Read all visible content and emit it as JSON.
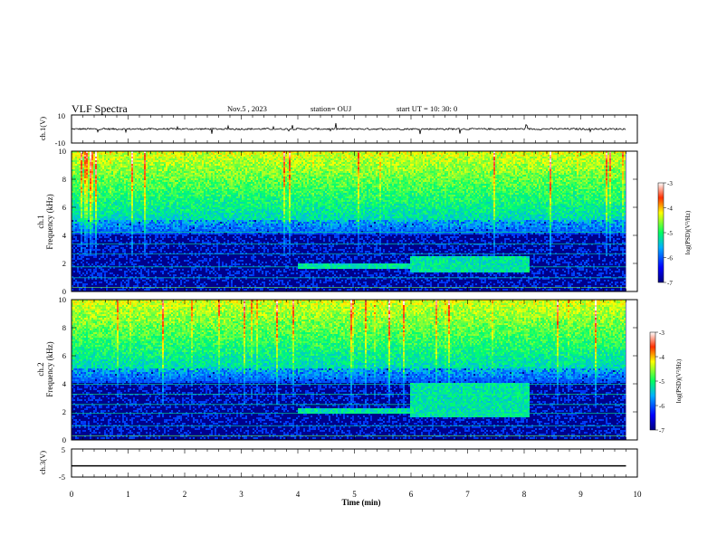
{
  "header": {
    "title": "VLF Spectra",
    "date": "Nov.5 , 2023",
    "station": "station= OUJ",
    "start_ut": "start UT = 10: 30: 0"
  },
  "chart_data": [
    {
      "type": "line",
      "ylabel": "ch.1(V)",
      "ylim": [
        -10,
        10
      ],
      "yticks": [
        "10",
        "-10"
      ],
      "xlim": [
        0,
        10
      ],
      "baseline": 0,
      "trace_color": "#000000"
    },
    {
      "type": "heatmap",
      "ylabel": "ch.1\nFrequency (kHz)",
      "ylim": [
        0,
        10
      ],
      "yticks": [
        "0",
        "2",
        "4",
        "6",
        "8",
        "10"
      ],
      "xlim": [
        0,
        10
      ],
      "colorbar": {
        "label": "log(PSD)(V²/Hz)",
        "range": [
          -7,
          -3
        ],
        "ticks": [
          "-3",
          "-4",
          "-5",
          "-6",
          "-7"
        ]
      },
      "features": [
        {
          "desc": "broadband noise",
          "freq_khz": [
            5,
            10
          ],
          "time_min": [
            0,
            9.8
          ]
        },
        {
          "desc": "band",
          "freq_khz": [
            1.5,
            2.0
          ],
          "time_min": [
            4.0,
            6.0
          ]
        },
        {
          "desc": "band",
          "freq_khz": [
            1.3,
            2.5
          ],
          "time_min": [
            6.0,
            8.1
          ]
        }
      ]
    },
    {
      "type": "heatmap",
      "ylabel": "ch.2\nFrequency (kHz)",
      "ylim": [
        0,
        10
      ],
      "yticks": [
        "0",
        "2",
        "4",
        "6",
        "8",
        "10"
      ],
      "xlim": [
        0,
        10
      ],
      "colorbar": {
        "label": "log(PSD)(V²/Hz)",
        "range": [
          -7,
          -3
        ],
        "ticks": [
          "-3",
          "-4",
          "-5",
          "-6",
          "-7"
        ]
      },
      "features": [
        {
          "desc": "broadband noise",
          "freq_khz": [
            5,
            10
          ],
          "time_min": [
            0,
            9.8
          ]
        },
        {
          "desc": "band",
          "freq_khz": [
            1.8,
            2.2
          ],
          "time_min": [
            4.0,
            6.0
          ]
        },
        {
          "desc": "band",
          "freq_khz": [
            1.5,
            4.0
          ],
          "time_min": [
            6.0,
            8.1
          ]
        }
      ]
    },
    {
      "type": "line",
      "ylabel": "ch.3(V)",
      "ylim": [
        -5,
        5
      ],
      "yticks": [
        "5",
        "-5"
      ],
      "xlim": [
        0,
        10
      ],
      "x": [
        0,
        5.7,
        5.7,
        9.8
      ],
      "y": [
        -1.0,
        -1.0,
        -1.0,
        -1.0
      ],
      "xlabel": "Time (min)",
      "xticks": [
        "0",
        "1",
        "2",
        "3",
        "4",
        "5",
        "6",
        "7",
        "8",
        "9",
        "10"
      ],
      "trace_color": "#000000"
    }
  ]
}
